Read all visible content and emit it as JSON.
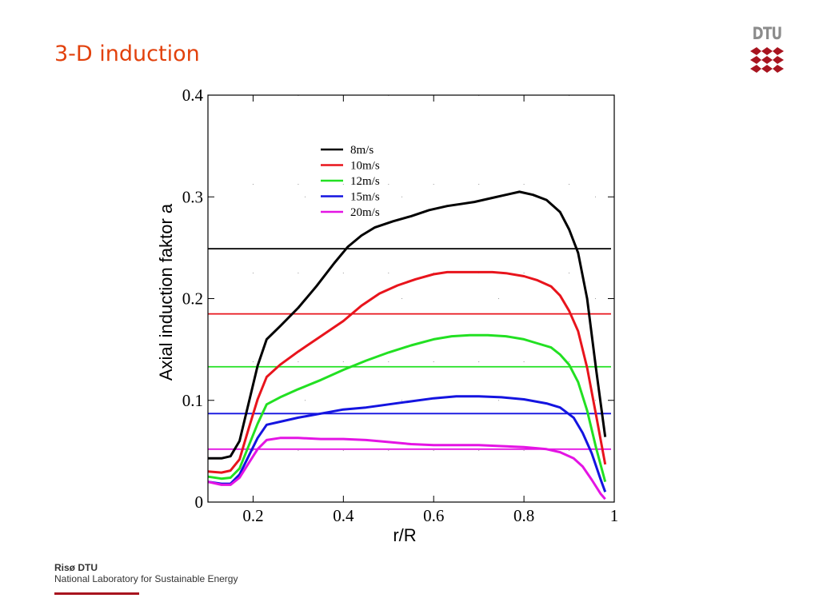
{
  "slide": {
    "title": "3-D induction",
    "logo_text": "DTU",
    "footer_org": "Risø DTU",
    "footer_sub": "National Laboratory for Sustainable Energy",
    "accent_color": "#e2410c",
    "brand_color": "#a8141f"
  },
  "chart_data": {
    "type": "line",
    "xlabel": "r/R",
    "ylabel": "Axial induction faktor a",
    "xlim": [
      0.1,
      1.0
    ],
    "ylim": [
      0,
      0.4
    ],
    "xticks": [
      {
        "v": 0.2,
        "label": "0.2"
      },
      {
        "v": 0.4,
        "label": "0.4"
      },
      {
        "v": 0.6,
        "label": "0.6"
      },
      {
        "v": 0.8,
        "label": "0.8"
      },
      {
        "v": 1.0,
        "label": "1"
      }
    ],
    "yticks": [
      {
        "v": 0,
        "label": "0"
      },
      {
        "v": 0.1,
        "label": "0.1"
      },
      {
        "v": 0.2,
        "label": "0.2"
      },
      {
        "v": 0.3,
        "label": "0.3"
      },
      {
        "v": 0.4,
        "label": "0.4"
      }
    ],
    "grid": "dotted",
    "legend_position": "upper-left-center",
    "series": [
      {
        "name": "8m/s",
        "color": "#000000",
        "constant": 0.249,
        "x": [
          0.1,
          0.13,
          0.15,
          0.17,
          0.19,
          0.21,
          0.23,
          0.26,
          0.3,
          0.34,
          0.38,
          0.41,
          0.44,
          0.47,
          0.51,
          0.55,
          0.59,
          0.63,
          0.66,
          0.69,
          0.73,
          0.76,
          0.79,
          0.82,
          0.85,
          0.88,
          0.9,
          0.92,
          0.94,
          0.96,
          0.98
        ],
        "y": [
          0.043,
          0.043,
          0.045,
          0.06,
          0.097,
          0.134,
          0.16,
          0.173,
          0.191,
          0.212,
          0.235,
          0.251,
          0.262,
          0.27,
          0.276,
          0.281,
          0.287,
          0.291,
          0.293,
          0.295,
          0.299,
          0.302,
          0.305,
          0.302,
          0.297,
          0.285,
          0.268,
          0.245,
          0.2,
          0.13,
          0.064
        ]
      },
      {
        "name": "10m/s",
        "color": "#e8141c",
        "constant": 0.185,
        "x": [
          0.1,
          0.13,
          0.15,
          0.17,
          0.19,
          0.21,
          0.23,
          0.26,
          0.3,
          0.35,
          0.4,
          0.44,
          0.48,
          0.52,
          0.56,
          0.6,
          0.63,
          0.66,
          0.69,
          0.73,
          0.76,
          0.8,
          0.83,
          0.86,
          0.88,
          0.9,
          0.92,
          0.94,
          0.96,
          0.98
        ],
        "y": [
          0.03,
          0.029,
          0.031,
          0.042,
          0.072,
          0.101,
          0.123,
          0.135,
          0.148,
          0.163,
          0.178,
          0.193,
          0.205,
          0.213,
          0.219,
          0.224,
          0.226,
          0.226,
          0.226,
          0.226,
          0.225,
          0.222,
          0.218,
          0.212,
          0.203,
          0.188,
          0.168,
          0.132,
          0.085,
          0.037
        ]
      },
      {
        "name": "12m/s",
        "color": "#22e022",
        "constant": 0.133,
        "x": [
          0.1,
          0.13,
          0.15,
          0.17,
          0.19,
          0.21,
          0.23,
          0.26,
          0.3,
          0.35,
          0.4,
          0.45,
          0.5,
          0.55,
          0.6,
          0.64,
          0.68,
          0.72,
          0.76,
          0.8,
          0.83,
          0.86,
          0.88,
          0.9,
          0.92,
          0.94,
          0.96,
          0.98
        ],
        "y": [
          0.025,
          0.023,
          0.024,
          0.033,
          0.055,
          0.077,
          0.096,
          0.103,
          0.111,
          0.12,
          0.13,
          0.139,
          0.147,
          0.154,
          0.16,
          0.163,
          0.164,
          0.164,
          0.163,
          0.16,
          0.156,
          0.152,
          0.145,
          0.135,
          0.118,
          0.09,
          0.053,
          0.02
        ]
      },
      {
        "name": "15m/s",
        "color": "#1414e0",
        "constant": 0.087,
        "x": [
          0.1,
          0.13,
          0.15,
          0.17,
          0.19,
          0.21,
          0.23,
          0.26,
          0.3,
          0.35,
          0.4,
          0.45,
          0.5,
          0.55,
          0.6,
          0.65,
          0.7,
          0.75,
          0.8,
          0.85,
          0.88,
          0.91,
          0.93,
          0.95,
          0.97,
          0.98
        ],
        "y": [
          0.02,
          0.018,
          0.018,
          0.027,
          0.045,
          0.063,
          0.076,
          0.079,
          0.083,
          0.087,
          0.091,
          0.093,
          0.096,
          0.099,
          0.102,
          0.104,
          0.104,
          0.103,
          0.101,
          0.097,
          0.093,
          0.083,
          0.068,
          0.048,
          0.022,
          0.01
        ]
      },
      {
        "name": "20m/s",
        "color": "#e414e4",
        "constant": 0.052,
        "x": [
          0.1,
          0.13,
          0.15,
          0.17,
          0.19,
          0.21,
          0.23,
          0.26,
          0.3,
          0.35,
          0.4,
          0.45,
          0.5,
          0.55,
          0.6,
          0.65,
          0.7,
          0.75,
          0.8,
          0.85,
          0.88,
          0.91,
          0.93,
          0.95,
          0.97,
          0.98
        ],
        "y": [
          0.02,
          0.017,
          0.017,
          0.024,
          0.038,
          0.052,
          0.061,
          0.063,
          0.063,
          0.062,
          0.062,
          0.061,
          0.059,
          0.057,
          0.056,
          0.056,
          0.056,
          0.055,
          0.054,
          0.052,
          0.049,
          0.043,
          0.035,
          0.022,
          0.008,
          0.003
        ]
      }
    ]
  }
}
